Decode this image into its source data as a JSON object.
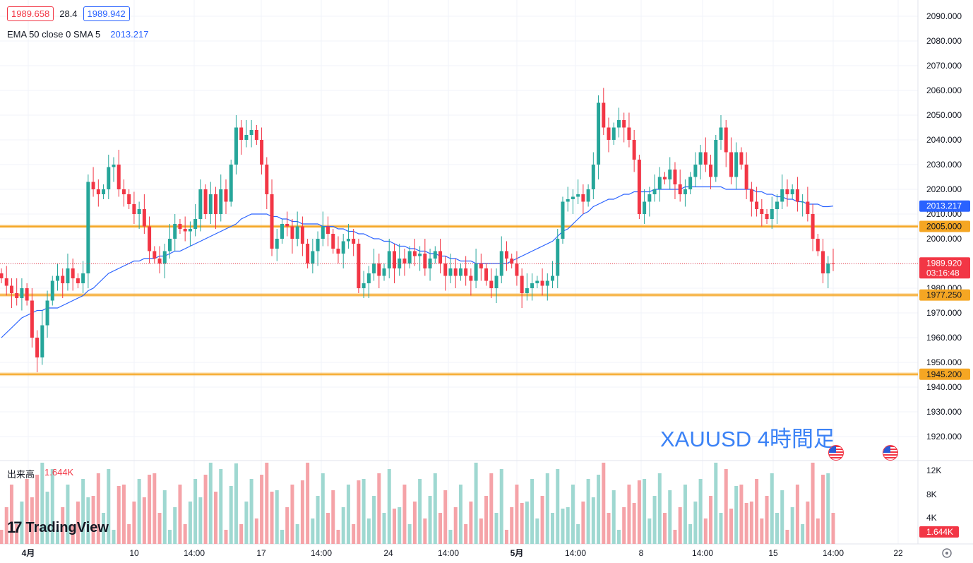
{
  "header": {
    "bid": "1989.658",
    "spread": "28.4",
    "ask": "1989.942",
    "indicator_label": "EMA 50 close 0 SMA 5",
    "indicator_value": "2013.217"
  },
  "watermark": "XAUUSD 4時間足",
  "volume_label": "出来高",
  "volume_value": "1.644K",
  "logo_text": "TradingView",
  "colors": {
    "up": "#26a69a",
    "down": "#f23645",
    "ema": "#2962ff",
    "hline": "#f5a623",
    "up_vol": "#9fd8d1",
    "down_vol": "#f5a3a8"
  },
  "chart_data": {
    "type": "candlestick",
    "symbol": "XAUUSD",
    "timeframe": "4時間足",
    "y_ticks": [
      "2090.000",
      "2080.000",
      "2070.000",
      "2060.000",
      "2050.000",
      "2040.000",
      "2030.000",
      "2020.000",
      "2010.000",
      "2000.000",
      "1980.000",
      "1970.000",
      "1960.000",
      "1950.000",
      "1940.000",
      "1930.000",
      "1920.000"
    ],
    "ylim": [
      1914,
      2094
    ],
    "x_ticks": [
      "4月",
      "10",
      "14:00",
      "17",
      "14:00",
      "24",
      "14:00",
      "5月",
      "14:00",
      "8",
      "14:00",
      "15",
      "14:00",
      "22"
    ],
    "volume_ticks": [
      "12K",
      "8K",
      "4K"
    ],
    "horizontal_lines": [
      {
        "price": 2005.0,
        "label": "2005.000"
      },
      {
        "price": 1977.25,
        "label": "1977.250"
      },
      {
        "price": 1945.2,
        "label": "1945.200"
      }
    ],
    "ema_label": "2013.217",
    "last_price": {
      "price": 1989.92,
      "label": "1989.920",
      "countdown": "03:16:48"
    },
    "volume_last_label": "1.644K",
    "closes": [
      1984,
      1981,
      1978,
      1976,
      1980,
      1975,
      1960,
      1952,
      1965,
      1975,
      1983,
      1985,
      1982,
      1988,
      1984,
      1982,
      1986,
      2023,
      2020,
      2018,
      2020,
      2029,
      2030,
      2020,
      2018,
      2014,
      2010,
      2012,
      2005,
      1995,
      1992,
      1990,
      1995,
      2000,
      2006,
      2004,
      2003,
      2004,
      2008,
      2020,
      2010,
      2018,
      2010,
      2020,
      2015,
      2030,
      2045,
      2040,
      2042,
      2044,
      2040,
      2030,
      2018,
      1996,
      2000,
      2006,
      2005,
      2000,
      2005,
      1998,
      1990,
      1995,
      2000,
      2005,
      2002,
      1996,
      1994,
      1999,
      2000,
      1998,
      1980,
      1982,
      1986,
      1990,
      1985,
      1988,
      1995,
      1988,
      1992,
      1990,
      1995,
      1993,
      1994,
      1988,
      1992,
      1995,
      1990,
      1985,
      1988,
      1985,
      1988,
      1985,
      1983,
      1990,
      1988,
      1983,
      1980,
      1985,
      1995,
      1992,
      1990,
      1985,
      1978,
      1980,
      1982,
      1983,
      1981,
      1983,
      1985,
      2000,
      2015,
      2016,
      2017,
      2018,
      2015,
      2020,
      2030,
      2055,
      2045,
      2040,
      2045,
      2048,
      2045,
      2040,
      2032,
      2010,
      2015,
      2018,
      2020,
      2025,
      2024,
      2028,
      2022,
      2018,
      2020,
      2025,
      2030,
      2035,
      2030,
      2025,
      2040,
      2045,
      2035,
      2025,
      2035,
      2030,
      2020,
      2015,
      2012,
      2010,
      2008,
      2012,
      2015,
      2020,
      2018,
      2020,
      2015,
      2015,
      2010,
      2000,
      1995,
      1986,
      1990,
      1989.92
    ],
    "ema_values": [
      1960,
      1962,
      1964,
      1966,
      1968,
      1969,
      1970,
      1971,
      1971,
      1972,
      1972,
      1972,
      1973,
      1974,
      1975,
      1976,
      1977,
      1979,
      1980,
      1982,
      1984,
      1986,
      1987,
      1988,
      1989,
      1990,
      1991,
      1991,
      1992,
      1992,
      1992,
      1993,
      1993,
      1994,
      1995,
      1995,
      1996,
      1997,
      1998,
      1999,
      2000,
      2001,
      2002,
      2003,
      2004,
      2005,
      2006,
      2008,
      2009,
      2010,
      2010,
      2010,
      2010,
      2009,
      2009,
      2008,
      2008,
      2007,
      2007,
      2006,
      2006,
      2006,
      2006,
      2005,
      2005,
      2005,
      2004,
      2004,
      2003,
      2003,
      2002,
      2002,
      2001,
      2000,
      2000,
      1999,
      1999,
      1998,
      1997,
      1997,
      1996,
      1996,
      1995,
      1995,
      1994,
      1994,
      1993,
      1993,
      1992,
      1992,
      1991,
      1991,
      1991,
      1990,
      1990,
      1990,
      1990,
      1990,
      1990,
      1990,
      1991,
      1992,
      1993,
      1994,
      1995,
      1996,
      1997,
      1998,
      1999,
      2001,
      2003,
      2004,
      2006,
      2008,
      2010,
      2011,
      2013,
      2014,
      2015,
      2016,
      2016,
      2017,
      2018,
      2018,
      2019,
      2019,
      2019,
      2019,
      2020,
      2020,
      2020,
      2020,
      2020,
      2020,
      2021,
      2021,
      2021,
      2021,
      2021,
      2021,
      2021,
      2021,
      2020,
      2020,
      2020,
      2020,
      2020,
      2020,
      2019,
      2019,
      2018,
      2018,
      2017,
      2017,
      2016,
      2016,
      2015,
      2015,
      2014,
      2014,
      2014,
      2013,
      2013,
      2013.217
    ]
  }
}
